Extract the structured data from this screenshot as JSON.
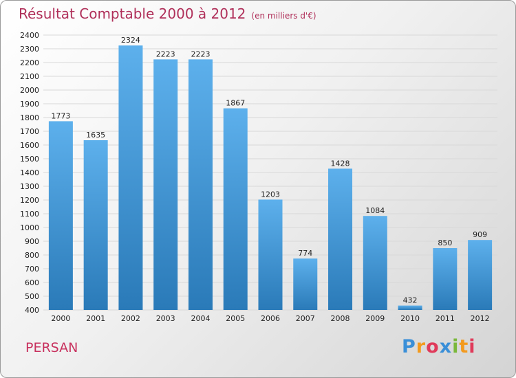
{
  "header": {
    "title": "Résultat Comptable 2000 à 2012",
    "subtitle": "(en milliers d'€)"
  },
  "footer": {
    "commune": "PERSAN",
    "logo": [
      "P",
      "r",
      "o",
      "x",
      "i",
      "t",
      "i"
    ],
    "logo_colors": [
      "#3a8fd8",
      "#f39a1e",
      "#e03a5a",
      "#3a8fd8",
      "#7ab83a",
      "#f39a1e",
      "#e03a5a"
    ]
  },
  "colors": {
    "bar_top": "#5db0ec",
    "bar_bottom": "#2a7ab8",
    "grid": "#d8d8d8",
    "axis_text": "#222222"
  },
  "chart_data": {
    "type": "bar",
    "categories": [
      "2000",
      "2001",
      "2002",
      "2003",
      "2004",
      "2005",
      "2006",
      "2007",
      "2008",
      "2009",
      "2010",
      "2011",
      "2012"
    ],
    "values": [
      1773,
      1635,
      2324,
      2223,
      2223,
      1867,
      1203,
      774,
      1428,
      1084,
      432,
      850,
      909
    ],
    "ylim": [
      400,
      2400
    ],
    "yticks": [
      400,
      500,
      600,
      700,
      800,
      900,
      1000,
      1100,
      1200,
      1300,
      1400,
      1500,
      1600,
      1700,
      1800,
      1900,
      2000,
      2100,
      2200,
      2300,
      2400
    ],
    "grid": true,
    "legend": "none"
  }
}
